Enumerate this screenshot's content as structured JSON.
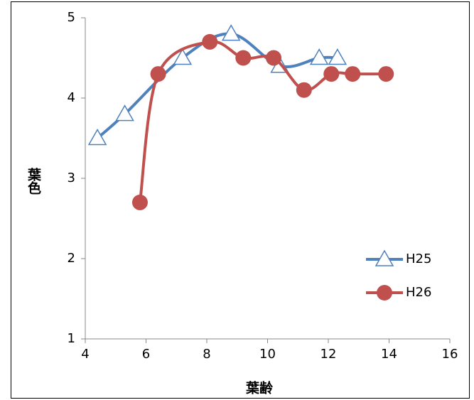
{
  "chart_data": {
    "type": "scatter-smooth",
    "x_label": "葉齢",
    "y_label": "葉色",
    "xlim": [
      4,
      16
    ],
    "xticks": [
      4,
      6,
      8,
      10,
      12,
      14,
      16
    ],
    "ylim": [
      1,
      5
    ],
    "yticks": [
      1,
      2,
      3,
      4,
      5
    ],
    "grid": false,
    "legend": "right",
    "series": [
      {
        "name": "H25",
        "color": "#4f81bd",
        "marker": "triangle",
        "x": [
          4.4,
          5.3,
          7.2,
          8.8,
          10.4,
          11.7,
          12.3
        ],
        "values": [
          3.5,
          3.8,
          4.5,
          4.8,
          4.4,
          4.5,
          4.5
        ]
      },
      {
        "name": "H26",
        "color": "#c0504d",
        "marker": "circle",
        "x": [
          5.8,
          6.4,
          8.1,
          9.2,
          10.2,
          11.2,
          12.1,
          12.8,
          13.9
        ],
        "values": [
          2.7,
          4.3,
          4.7,
          4.5,
          4.5,
          4.1,
          4.3,
          4.3,
          4.3
        ]
      }
    ]
  }
}
